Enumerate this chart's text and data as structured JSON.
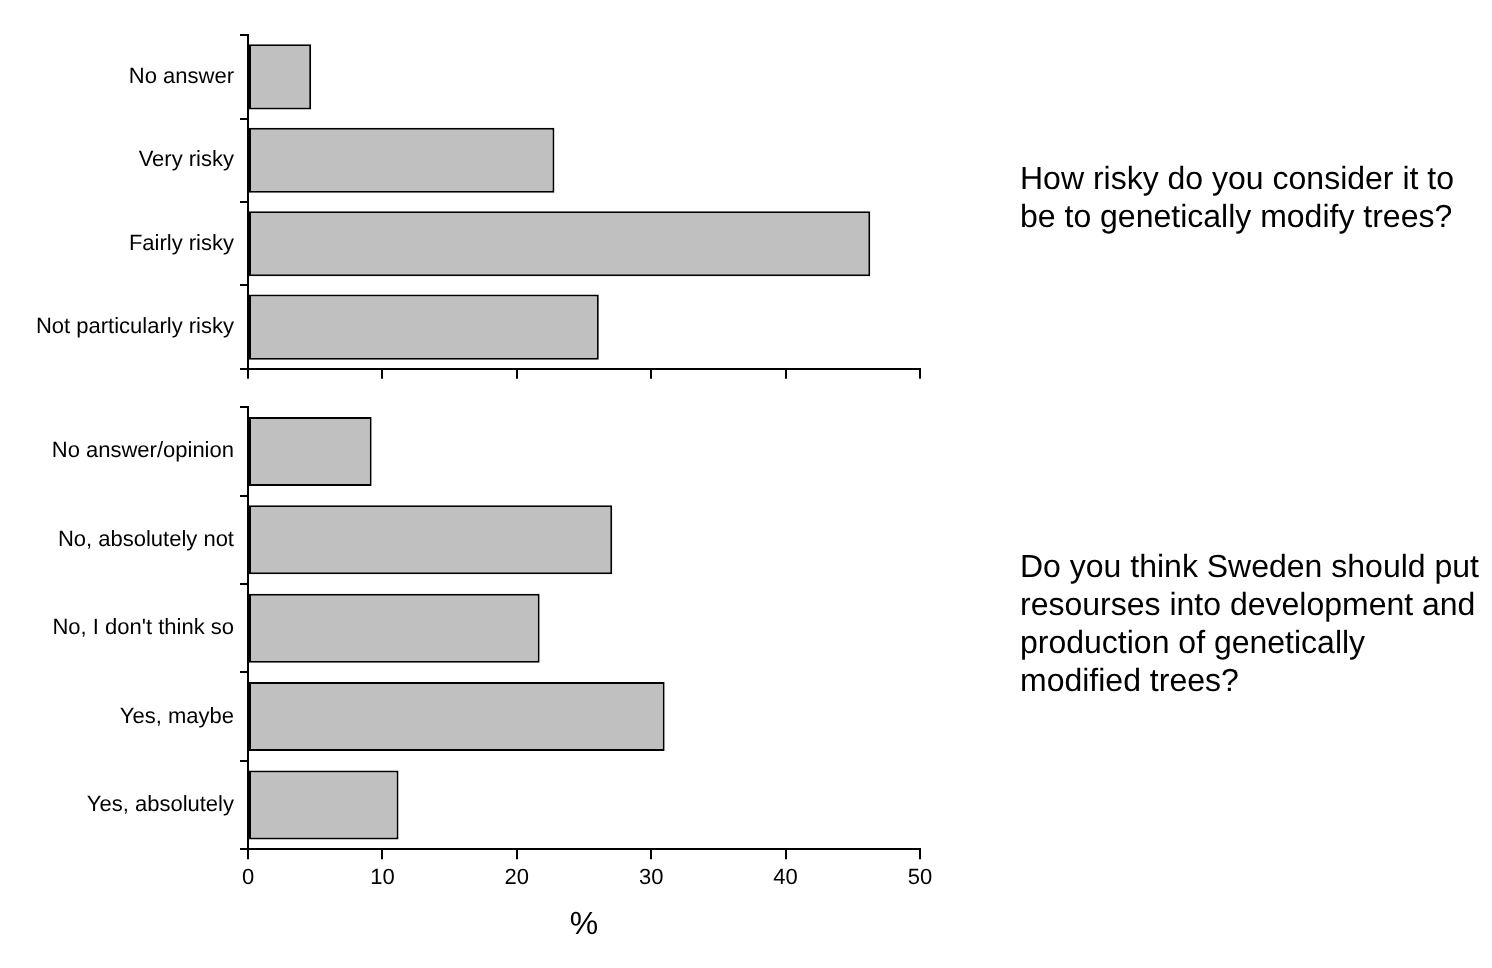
{
  "chart_data": [
    {
      "type": "bar",
      "orientation": "horizontal",
      "annotations": [
        "How risky do you consider it to be to genetically modify trees?"
      ],
      "categories": [
        "No answer",
        "Very risky",
        "Fairly risky",
        "Not particularly risky"
      ],
      "values": [
        4.7,
        22.8,
        46.3,
        26.1
      ],
      "color": "#c0c0c0",
      "xlim": [
        0,
        50
      ],
      "xticks": [
        0,
        10,
        20,
        30,
        40,
        50
      ],
      "tick_labels": "y",
      "grid": false,
      "legend": false
    },
    {
      "type": "bar",
      "orientation": "horizontal",
      "annotations": [
        "Do you think Sweden should put resourses into development and production of genetically modified trees?"
      ],
      "categories": [
        "No answer/opinion",
        "No, absolutely not",
        "No, I don't think so",
        "Yes, maybe",
        "Yes, absolutely"
      ],
      "values": [
        9.2,
        27.1,
        21.7,
        31.0,
        11.2
      ],
      "color": "#c0c0c0",
      "xlim": [
        0,
        50
      ],
      "xticks": [
        0,
        10,
        20,
        30,
        40,
        50
      ],
      "xlabel": "%",
      "grid": false,
      "legend": false
    }
  ]
}
